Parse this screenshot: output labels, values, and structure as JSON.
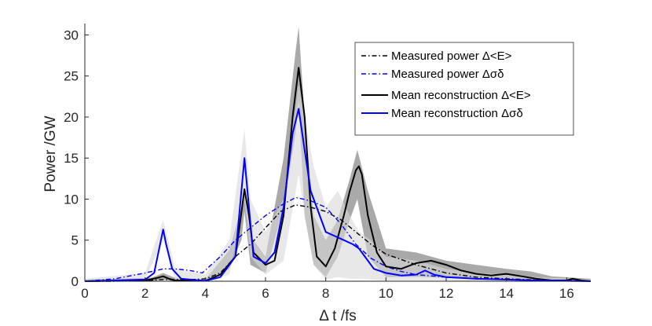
{
  "chart_data": {
    "type": "line",
    "title": "",
    "xlabel": "Δ t /fs",
    "ylabel": "Power /GW",
    "xlim": [
      0,
      16.8
    ],
    "ylim": [
      0,
      31
    ],
    "xticks": [
      0,
      2,
      4,
      6,
      8,
      10,
      12,
      14,
      16
    ],
    "yticks": [
      0,
      5,
      10,
      15,
      20,
      25,
      30
    ],
    "grid": false,
    "legend_position": "top-right",
    "colors": {
      "black": "#000000",
      "blue": "#0000ff",
      "band_dark": "#8c8c8c",
      "band_light": "#d9d9d9"
    },
    "bands": [
      {
        "name": "Mean reconstruction Δ<E> uncertainty",
        "color": "#8c8c8c",
        "x": [
          0,
          2.2,
          2.6,
          3.0,
          4.0,
          4.8,
          5.2,
          5.3,
          5.5,
          6.0,
          6.6,
          7.0,
          7.1,
          7.3,
          7.6,
          8.0,
          8.4,
          8.8,
          9.05,
          9.4,
          10.0,
          11.0,
          12.0,
          13.0,
          14.0,
          14.8,
          15.5,
          16.8
        ],
        "upper": [
          0.2,
          0.4,
          1.0,
          0.4,
          0.2,
          3.8,
          9.0,
          10.5,
          5.5,
          3.0,
          15.0,
          28.0,
          31.0,
          20.0,
          8.0,
          5.0,
          7.5,
          12.5,
          16.0,
          11.0,
          4.0,
          3.5,
          2.5,
          2.0,
          1.5,
          1.2,
          0.6,
          0.3
        ],
        "lower": [
          0,
          0.0,
          0.2,
          0.0,
          0.0,
          1.5,
          5.0,
          8.5,
          2.0,
          1.0,
          9.0,
          18.0,
          22.0,
          8.0,
          2.0,
          0.5,
          3.0,
          7.5,
          10.0,
          3.0,
          0.5,
          0.5,
          0.4,
          0.3,
          0.3,
          0.2,
          0.1,
          0.1
        ]
      },
      {
        "name": "Mean reconstruction Δσδ uncertainty",
        "color": "#d9d9d9",
        "x": [
          0,
          2.0,
          2.6,
          3.0,
          4.0,
          4.8,
          5.3,
          5.5,
          6.0,
          6.6,
          7.1,
          7.3,
          7.6,
          8.0,
          8.4,
          8.8,
          9.1,
          9.5,
          10.0,
          11.0,
          12.0,
          13.0,
          14.0,
          15.0,
          16.8
        ],
        "upper": [
          0.3,
          1.0,
          7.5,
          1.5,
          0.8,
          5.0,
          18.5,
          10.0,
          6.0,
          10.0,
          24.0,
          20.0,
          14.0,
          9.0,
          11.0,
          8.0,
          6.0,
          5.0,
          3.0,
          2.5,
          1.5,
          1.0,
          0.8,
          0.5,
          0.2
        ],
        "lower": [
          0,
          0.2,
          5.0,
          0.2,
          0.0,
          0.8,
          10.0,
          3.0,
          0.8,
          2.5,
          13.0,
          8.0,
          2.0,
          0.2,
          0.5,
          0.3,
          0.3,
          0.2,
          0.1,
          0.1,
          0.1,
          0.0,
          0.0,
          0.0,
          0.0
        ]
      }
    ],
    "series": [
      {
        "name": "Measured power Δ<E>",
        "color": "#000000",
        "style": "dashdot",
        "x": [
          0,
          1,
          2,
          2.6,
          3.0,
          3.5,
          4.0,
          4.5,
          5.0,
          5.5,
          6.0,
          6.5,
          7.0,
          7.5,
          8.0,
          8.5,
          9.0,
          9.5,
          10.0,
          11.0,
          12.0,
          13.0,
          14.0,
          15.0,
          16.0,
          16.8
        ],
        "y": [
          0,
          0,
          0.1,
          0.2,
          0.2,
          0.2,
          0.3,
          1.0,
          3.0,
          4.5,
          6.5,
          8.5,
          9.3,
          9.0,
          8.5,
          7.5,
          6.0,
          4.5,
          3.3,
          2.0,
          1.0,
          0.5,
          0.3,
          0.15,
          0.05,
          0
        ]
      },
      {
        "name": "Measured power Δσδ",
        "color": "#0000ff",
        "style": "dashdot",
        "x": [
          0,
          1,
          2,
          2.6,
          3.0,
          3.5,
          3.9,
          4.5,
          5.0,
          5.5,
          6.0,
          6.5,
          7.0,
          7.5,
          8.0,
          8.5,
          9.0,
          9.5,
          10.0,
          10.5,
          11.0,
          12.0,
          13.0,
          14.0,
          15.0,
          16.8
        ],
        "y": [
          0,
          0.3,
          1.0,
          1.5,
          1.5,
          1.3,
          1.0,
          3.0,
          5.0,
          6.5,
          8.0,
          9.2,
          10.2,
          9.8,
          9.0,
          7.0,
          4.5,
          2.8,
          1.8,
          1.2,
          0.8,
          0.5,
          0.3,
          0.2,
          0.1,
          0
        ]
      },
      {
        "name": "Mean reconstruction Δ<E>",
        "color": "#000000",
        "style": "solid",
        "x": [
          0,
          2.0,
          2.4,
          2.6,
          2.8,
          3.0,
          3.5,
          4.0,
          4.5,
          5.0,
          5.15,
          5.3,
          5.45,
          5.6,
          6.0,
          6.3,
          6.6,
          6.9,
          7.1,
          7.3,
          7.5,
          7.7,
          8.0,
          8.3,
          8.6,
          8.8,
          9.0,
          9.1,
          9.2,
          9.4,
          9.7,
          10.0,
          10.5,
          11.0,
          11.5,
          12.0,
          12.5,
          13.0,
          13.5,
          14.0,
          14.5,
          15.0,
          15.5,
          16.0,
          16.2,
          16.5,
          16.8
        ],
        "y": [
          0,
          0.1,
          0.4,
          0.6,
          0.3,
          0.1,
          0.05,
          0.05,
          0.8,
          3.0,
          7.0,
          11.2,
          8.0,
          3.5,
          2.0,
          2.5,
          8.0,
          20.0,
          26.0,
          20.0,
          9.0,
          3.0,
          1.8,
          4.0,
          8.0,
          11.0,
          13.5,
          14.0,
          13.0,
          8.0,
          3.5,
          1.8,
          1.5,
          2.2,
          2.5,
          2.0,
          1.3,
          0.9,
          0.7,
          0.9,
          0.6,
          0.3,
          0.1,
          0.1,
          0.3,
          0.1,
          0
        ]
      },
      {
        "name": "Mean reconstruction Δσδ",
        "color": "#0000ff",
        "style": "solid",
        "x": [
          0,
          2.0,
          2.3,
          2.5,
          2.6,
          2.7,
          2.9,
          3.2,
          4.0,
          4.5,
          5.0,
          5.15,
          5.3,
          5.45,
          5.6,
          6.0,
          6.3,
          6.6,
          6.9,
          7.1,
          7.3,
          7.5,
          7.8,
          8.0,
          8.3,
          8.6,
          8.9,
          9.1,
          9.3,
          9.6,
          10.0,
          10.5,
          11.0,
          11.3,
          11.6,
          12.0,
          12.5,
          13.0,
          14.0,
          15.0,
          16.0,
          16.8
        ],
        "y": [
          0,
          0.2,
          1.0,
          4.5,
          6.3,
          4.5,
          1.5,
          0.3,
          0.05,
          0.5,
          3.0,
          9.0,
          15.0,
          9.0,
          3.0,
          2.2,
          3.5,
          9.0,
          18.0,
          21.0,
          16.0,
          11.0,
          8.0,
          6.0,
          5.5,
          5.0,
          4.5,
          4.0,
          3.0,
          1.5,
          1.0,
          0.7,
          0.8,
          1.3,
          0.8,
          0.5,
          0.4,
          0.3,
          0.2,
          0.1,
          0.05,
          0
        ]
      }
    ]
  }
}
